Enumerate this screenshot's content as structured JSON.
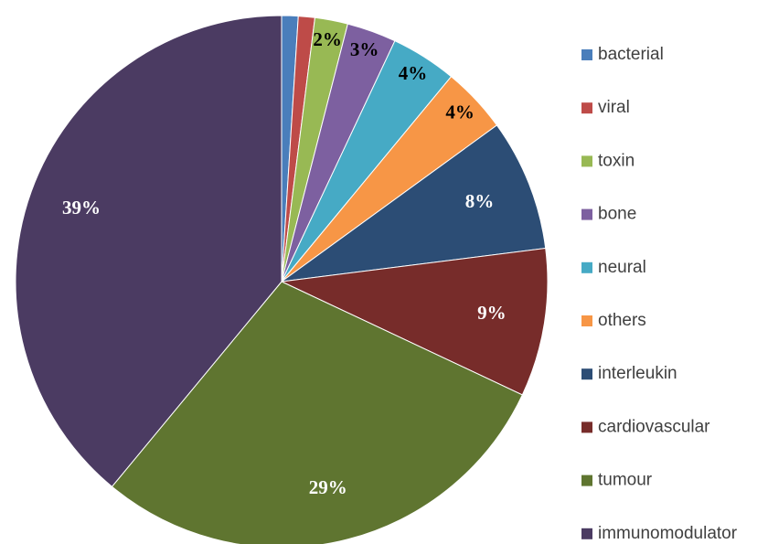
{
  "chart_data": {
    "type": "pie",
    "categories": [
      "bacterial",
      "viral",
      "toxin",
      "bone",
      "neural",
      "others",
      "interleukin",
      "cardiovascular",
      "tumour",
      "immunomodulator"
    ],
    "values": [
      1,
      1,
      2,
      3,
      4,
      4,
      8,
      9,
      29,
      39
    ],
    "value_labels": [
      null,
      null,
      "2%",
      "3%",
      "4%",
      "4%",
      "8%",
      "9%",
      "29%",
      "39%"
    ],
    "colors": [
      "#4a7ebb",
      "#be4b48",
      "#98b954",
      "#7d60a0",
      "#46aac5",
      "#f79646",
      "#2c4d75",
      "#772c2a",
      "#5f7530",
      "#4b3b62"
    ],
    "label_colors": [
      "#000000",
      "#000000",
      "#000000",
      "#000000",
      "#000000",
      "#000000",
      "#ffffff",
      "#ffffff",
      "#ffffff",
      "#ffffff"
    ],
    "legend": "right"
  }
}
